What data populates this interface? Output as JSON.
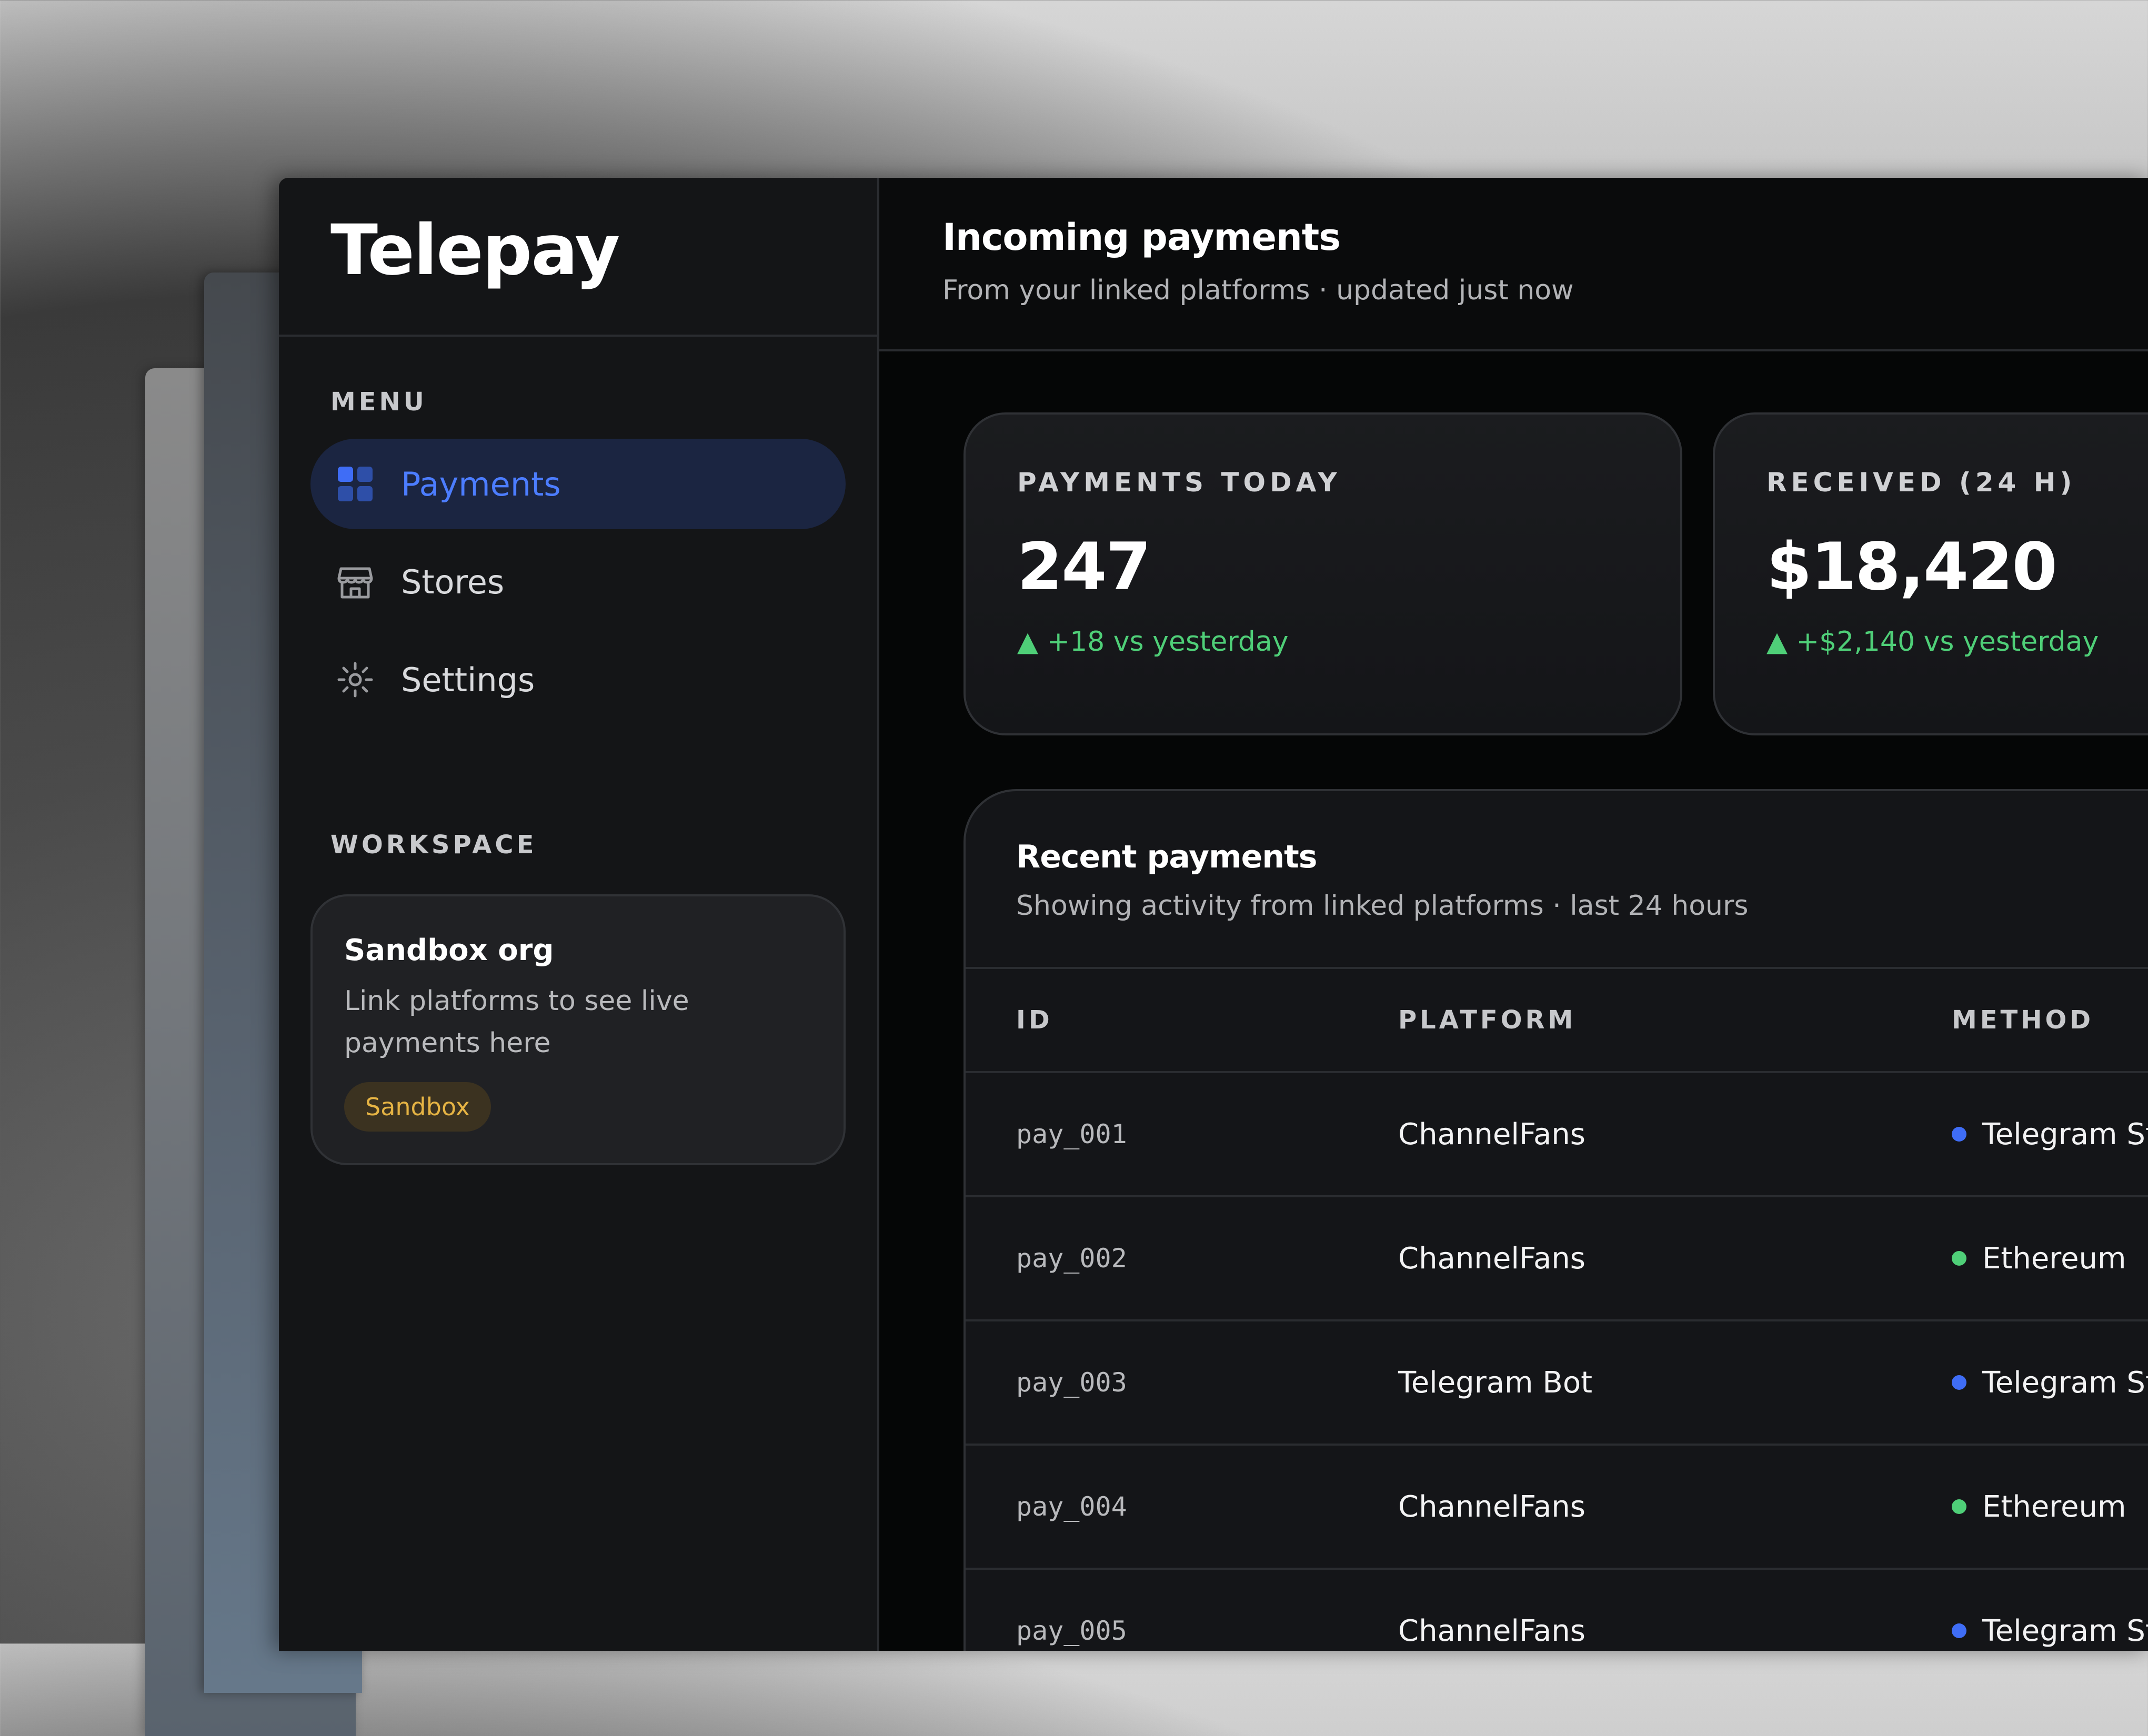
{
  "brand": {
    "name": "Telepay"
  },
  "sidebar": {
    "menu_label": "MENU",
    "items": [
      {
        "label": "Payments",
        "icon": "grid-icon",
        "active": true
      },
      {
        "label": "Stores",
        "icon": "store-icon",
        "active": false
      },
      {
        "label": "Settings",
        "icon": "gear-icon",
        "active": false
      }
    ],
    "workspace_label": "WORKSPACE",
    "workspace": {
      "title": "Sandbox org",
      "description": "Link platforms to see live payments here",
      "badge": "Sandbox"
    }
  },
  "header": {
    "title": "Incoming payments",
    "subtitle": "From your linked platforms · updated just now"
  },
  "stats": [
    {
      "label": "PAYMENTS TODAY",
      "value": "247",
      "delta": "▲ +18 vs yesterday"
    },
    {
      "label": "RECEIVED (24 H)",
      "value": "$18,420",
      "delta": "▲ +$2,140 vs yesterday"
    }
  ],
  "recent": {
    "title": "Recent payments",
    "subtitle": "Showing activity from linked platforms · last 24 hours",
    "columns": [
      "ID",
      "PLATFORM",
      "METHOD"
    ],
    "rows": [
      {
        "id": "pay_001",
        "platform": "ChannelFans",
        "method": "Telegram Stars",
        "method_color": "#3f6df6"
      },
      {
        "id": "pay_002",
        "platform": "ChannelFans",
        "method": "Ethereum",
        "method_color": "#4fcf78"
      },
      {
        "id": "pay_003",
        "platform": "Telegram Bot",
        "method": "Telegram Stars",
        "method_color": "#3f6df6"
      },
      {
        "id": "pay_004",
        "platform": "ChannelFans",
        "method": "Ethereum",
        "method_color": "#4fcf78"
      },
      {
        "id": "pay_005",
        "platform": "ChannelFans",
        "method": "Telegram Stars",
        "method_color": "#3f6df6"
      }
    ]
  },
  "colors": {
    "accent": "#4c7dff",
    "positive": "#4fcf78",
    "badge": "#e6b444"
  }
}
